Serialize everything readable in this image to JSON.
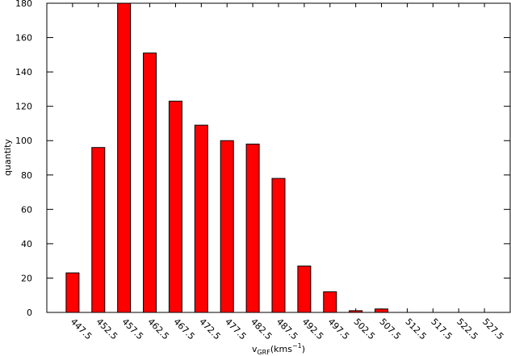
{
  "chart_data": {
    "type": "bar",
    "ylabel": "quantity",
    "xlabel": [
      "v",
      "GRF",
      "(kms",
      "−1",
      ")"
    ],
    "x": [
      447.5,
      452.5,
      457.5,
      462.5,
      467.5,
      472.5,
      477.5,
      482.5,
      487.5,
      492.5,
      497.5,
      502.5,
      507.5,
      512.5,
      517.5,
      522.5,
      527.5
    ],
    "values": [
      23,
      96,
      180,
      151,
      123,
      109,
      100,
      98,
      78,
      27,
      12,
      1,
      2,
      0,
      0,
      0,
      0
    ],
    "color": "#ff0000",
    "xlim": [
      442.5,
      532.5
    ],
    "xticks": [
      447.5,
      452.5,
      457.5,
      462.5,
      467.5,
      472.5,
      477.5,
      482.5,
      487.5,
      492.5,
      497.5,
      502.5,
      507.5,
      512.5,
      517.5,
      522.5,
      527.5
    ],
    "ylim": [
      0,
      180
    ],
    "yticks": [
      0,
      20,
      40,
      60,
      80,
      100,
      120,
      140,
      160,
      180
    ],
    "grid": false
  }
}
